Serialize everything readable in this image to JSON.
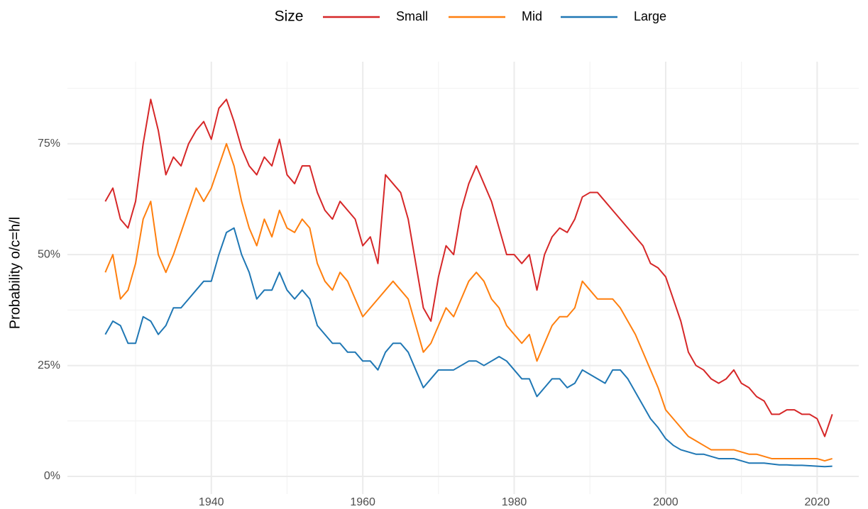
{
  "chart_data": {
    "type": "line",
    "y_label": "Probability o/c=h/l",
    "legend_title": "Size",
    "legend_position": "top",
    "grid": true,
    "xlim": [
      1921,
      2025.5
    ],
    "xticks": [
      1940,
      1960,
      1980,
      2000,
      2020
    ],
    "x_minor_grid": [
      1930,
      1950,
      1970,
      1990,
      2010
    ],
    "ylim": [
      -4,
      93.5
    ],
    "yticks": [
      {
        "value": 0,
        "label": "0%"
      },
      {
        "value": 25,
        "label": "25%"
      },
      {
        "value": 50,
        "label": "50%"
      },
      {
        "value": 75,
        "label": "75%"
      }
    ],
    "y_minor_grid": [
      12.5,
      37.5,
      62.5,
      87.5
    ],
    "x": [
      1926,
      1927,
      1928,
      1929,
      1930,
      1931,
      1932,
      1933,
      1934,
      1935,
      1936,
      1937,
      1938,
      1939,
      1940,
      1941,
      1942,
      1943,
      1944,
      1945,
      1946,
      1947,
      1948,
      1949,
      1950,
      1951,
      1952,
      1953,
      1954,
      1955,
      1956,
      1957,
      1958,
      1959,
      1960,
      1961,
      1962,
      1963,
      1964,
      1965,
      1966,
      1967,
      1968,
      1969,
      1970,
      1971,
      1972,
      1973,
      1974,
      1975,
      1976,
      1977,
      1978,
      1979,
      1980,
      1981,
      1982,
      1983,
      1984,
      1985,
      1986,
      1987,
      1988,
      1989,
      1990,
      1991,
      1992,
      1993,
      1994,
      1995,
      1996,
      1997,
      1998,
      1999,
      2000,
      2001,
      2002,
      2003,
      2004,
      2005,
      2006,
      2007,
      2008,
      2009,
      2010,
      2011,
      2012,
      2013,
      2014,
      2015,
      2016,
      2017,
      2018,
      2019,
      2020,
      2021,
      2022
    ],
    "series": [
      {
        "name": "Small",
        "color": "#d62728",
        "values": [
          62,
          65,
          58,
          56,
          62,
          75,
          85,
          78,
          68,
          72,
          70,
          75,
          78,
          80,
          76,
          83,
          85,
          80,
          74,
          70,
          68,
          72,
          70,
          76,
          68,
          66,
          70,
          70,
          64,
          60,
          58,
          62,
          60,
          58,
          52,
          54,
          48,
          68,
          66,
          64,
          58,
          48,
          38,
          35,
          45,
          52,
          50,
          60,
          66,
          70,
          66,
          62,
          56,
          50,
          50,
          48,
          50,
          42,
          50,
          54,
          56,
          55,
          58,
          63,
          64,
          64,
          62,
          60,
          58,
          56,
          54,
          52,
          48,
          47,
          45,
          40,
          35,
          28,
          25,
          24,
          22,
          21,
          22,
          24,
          21,
          20,
          18,
          17,
          14,
          14,
          15,
          15,
          14,
          14,
          13,
          9,
          14
        ]
      },
      {
        "name": "Mid",
        "color": "#ff7f0e",
        "values": [
          46,
          50,
          40,
          42,
          48,
          58,
          62,
          50,
          46,
          50,
          55,
          60,
          65,
          62,
          65,
          70,
          75,
          70,
          62,
          56,
          52,
          58,
          54,
          60,
          56,
          55,
          58,
          56,
          48,
          44,
          42,
          46,
          44,
          40,
          36,
          38,
          40,
          42,
          44,
          42,
          40,
          34,
          28,
          30,
          34,
          38,
          36,
          40,
          44,
          46,
          44,
          40,
          38,
          34,
          32,
          30,
          32,
          26,
          30,
          34,
          36,
          36,
          38,
          44,
          42,
          40,
          40,
          40,
          38,
          35,
          32,
          28,
          24,
          20,
          15,
          13,
          11,
          9,
          8,
          7,
          6,
          6,
          6,
          6,
          5.5,
          5,
          5,
          4.5,
          4,
          4,
          4,
          4,
          4,
          4,
          4,
          3.5,
          4
        ]
      },
      {
        "name": "Large",
        "color": "#1f77b4",
        "values": [
          32,
          35,
          34,
          30,
          30,
          36,
          35,
          32,
          34,
          38,
          38,
          40,
          42,
          44,
          44,
          50,
          55,
          56,
          50,
          46,
          40,
          42,
          42,
          46,
          42,
          40,
          42,
          40,
          34,
          32,
          30,
          30,
          28,
          28,
          26,
          26,
          24,
          28,
          30,
          30,
          28,
          24,
          20,
          22,
          24,
          24,
          24,
          25,
          26,
          26,
          25,
          26,
          27,
          26,
          24,
          22,
          22,
          18,
          20,
          22,
          22,
          20,
          21,
          24,
          23,
          22,
          21,
          24,
          24,
          22,
          19,
          16,
          13,
          11,
          8.5,
          7,
          6,
          5.5,
          5,
          5,
          4.5,
          4,
          4,
          4,
          3.5,
          3,
          3,
          3,
          2.8,
          2.6,
          2.6,
          2.5,
          2.5,
          2.4,
          2.3,
          2.2,
          2.3
        ]
      }
    ]
  }
}
